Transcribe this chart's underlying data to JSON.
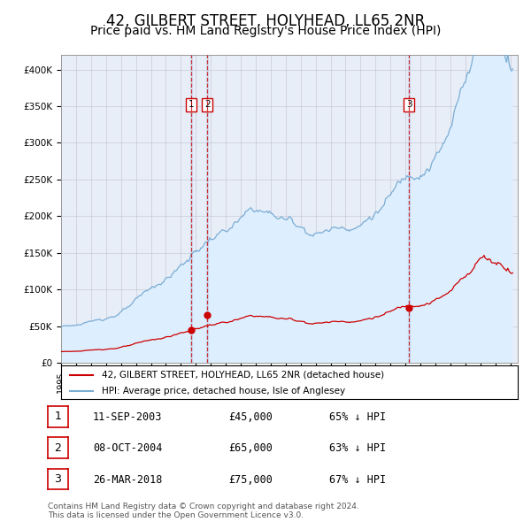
{
  "title": "42, GILBERT STREET, HOLYHEAD, LL65 2NR",
  "subtitle": "Price paid vs. HM Land Registry's House Price Index (HPI)",
  "title_fontsize": 12,
  "subtitle_fontsize": 10,
  "sale_color": "#cc0000",
  "hpi_color": "#7aadd4",
  "hpi_fill_color": "#ddeeff",
  "background_color": "#e8eef8",
  "sale_points": [
    {
      "date": "2003-09-11",
      "price": 45000,
      "label": "1"
    },
    {
      "date": "2004-10-08",
      "price": 65000,
      "label": "2"
    },
    {
      "date": "2018-03-26",
      "price": 75000,
      "label": "3"
    }
  ],
  "legend_entries": [
    "42, GILBERT STREET, HOLYHEAD, LL65 2NR (detached house)",
    "HPI: Average price, detached house, Isle of Anglesey"
  ],
  "table_rows": [
    {
      "num": "1",
      "date": "11-SEP-2003",
      "price": "£45,000",
      "note": "65% ↓ HPI"
    },
    {
      "num": "2",
      "date": "08-OCT-2004",
      "price": "£65,000",
      "note": "63% ↓ HPI"
    },
    {
      "num": "3",
      "date": "26-MAR-2018",
      "price": "£75,000",
      "note": "67% ↓ HPI"
    }
  ],
  "footer": "Contains HM Land Registry data © Crown copyright and database right 2024.\nThis data is licensed under the Open Government Licence v3.0.",
  "ylim": [
    0,
    420000
  ],
  "yticks": [
    0,
    50000,
    100000,
    150000,
    200000,
    250000,
    300000,
    350000,
    400000
  ],
  "ytick_labels": [
    "£0",
    "£50K",
    "£100K",
    "£150K",
    "£200K",
    "£250K",
    "£300K",
    "£350K",
    "£400K"
  ]
}
